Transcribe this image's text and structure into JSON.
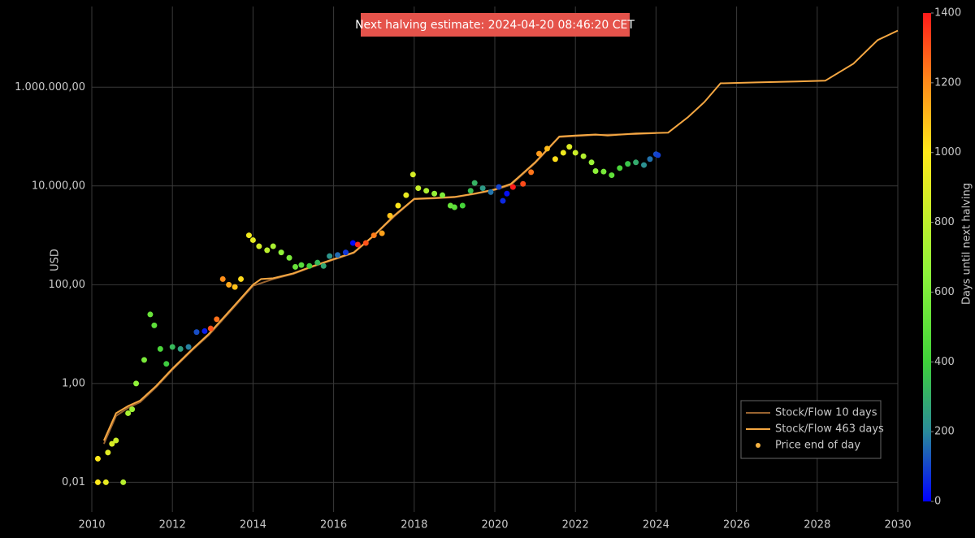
{
  "chart_data": {
    "type": "scatter",
    "annotation": "Next halving estimate: 2024-04-20 08:46:20 CET",
    "y_title": "USD",
    "y_scale": "log",
    "grid": true,
    "legend": "bottom right",
    "xlim": [
      2010,
      2030
    ],
    "xticks": [
      2010,
      2012,
      2014,
      2016,
      2018,
      2020,
      2022,
      2024,
      2026,
      2028,
      2030
    ],
    "ylim": [
      0.0025,
      43000000
    ],
    "yticks": [
      {
        "value": 0.01,
        "label": "0,01"
      },
      {
        "value": 1,
        "label": "1,00"
      },
      {
        "value": 100,
        "label": "100,00"
      },
      {
        "value": 10000,
        "label": "10.000,00"
      },
      {
        "value": 1000000,
        "label": "1.000.000,00"
      }
    ],
    "colorbar": {
      "title": "Days until next halving",
      "lim": [
        0,
        1400
      ],
      "ticks": [
        0,
        200,
        400,
        600,
        800,
        1000,
        1200,
        1400
      ],
      "colorscale": [
        [
          0,
          "#0000ff"
        ],
        [
          200,
          "#2a8a9a"
        ],
        [
          400,
          "#3fd13a"
        ],
        [
          650,
          "#8cf23a"
        ],
        [
          1000,
          "#ffe81a"
        ],
        [
          1200,
          "#ff8c1a"
        ],
        [
          1400,
          "#ff1a1a"
        ]
      ]
    },
    "series": [
      {
        "name": "Stock/Flow 10 days",
        "mode": "lines",
        "color": "#9a6430",
        "x": [
          2010.3,
          2010.6,
          2010.9,
          2011.2,
          2011.6,
          2012.0,
          2012.5,
          2012.9,
          2013.5,
          2014.0,
          2014.5,
          2015.0,
          2015.5,
          2016.0,
          2016.5,
          2017.0,
          2017.5,
          2018.0,
          2018.5,
          2019.0,
          2019.5,
          2020.0,
          2020.4,
          2021.0,
          2021.6,
          2022.5,
          2023.5,
          2024.0
        ],
        "values": [
          0.06,
          0.22,
          0.32,
          0.42,
          0.85,
          1.9,
          4.8,
          9.5,
          33,
          95,
          130,
          165,
          235,
          320,
          440,
          980,
          2400,
          5400,
          5600,
          5900,
          6900,
          8300,
          10500,
          29000,
          98000,
          108000,
          112000,
          118000
        ]
      },
      {
        "name": "Stock/Flow 463 days",
        "mode": "lines",
        "color": "#f5a742",
        "x": [
          2010.3,
          2010.6,
          2010.9,
          2011.2,
          2011.6,
          2012.0,
          2012.5,
          2012.9,
          2013.5,
          2014.0,
          2014.2,
          2014.5,
          2015.0,
          2015.5,
          2016.0,
          2016.5,
          2017.0,
          2017.5,
          2018.0,
          2018.5,
          2019.0,
          2019.5,
          2020.0,
          2020.4,
          2021.0,
          2021.6,
          2022.0,
          2022.5,
          2022.8,
          2023.5,
          2024.3,
          2024.8,
          2025.2,
          2025.6,
          2026.5,
          2027.5,
          2028.2,
          2028.9,
          2029.5,
          2030.0
        ],
        "values": [
          0.07,
          0.25,
          0.35,
          0.45,
          0.9,
          2,
          5,
          10,
          35,
          100,
          130,
          135,
          170,
          240,
          330,
          450,
          1000,
          2500,
          5500,
          5700,
          6000,
          7000,
          8500,
          11000,
          30000,
          100000,
          105000,
          110000,
          105000,
          115000,
          120000,
          250000,
          500000,
          1200000,
          1250000,
          1300000,
          1350000,
          3000000,
          9000000,
          14000000
        ]
      },
      {
        "name": "Price end of day",
        "mode": "markers",
        "color": "#f5b342",
        "x": [
          2010.15,
          2010.15,
          2010.35,
          2010.4,
          2010.5,
          2010.6,
          2010.78,
          2010.9,
          2011.0,
          2011.1,
          2011.3,
          2011.45,
          2011.55,
          2011.7,
          2011.85,
          2012.0,
          2012.2,
          2012.4,
          2012.6,
          2012.8,
          2012.95,
          2013.1,
          2013.25,
          2013.4,
          2013.55,
          2013.7,
          2013.9,
          2014.0,
          2014.15,
          2014.35,
          2014.5,
          2014.7,
          2014.9,
          2015.05,
          2015.2,
          2015.4,
          2015.6,
          2015.75,
          2015.9,
          2016.1,
          2016.3,
          2016.48,
          2016.6,
          2016.8,
          2017.0,
          2017.2,
          2017.4,
          2017.6,
          2017.8,
          2017.97,
          2018.1,
          2018.3,
          2018.5,
          2018.7,
          2018.9,
          2019.0,
          2019.2,
          2019.4,
          2019.5,
          2019.7,
          2019.9,
          2020.1,
          2020.2,
          2020.3,
          2020.45,
          2020.7,
          2020.9,
          2021.1,
          2021.3,
          2021.5,
          2021.7,
          2021.85,
          2022.0,
          2022.2,
          2022.4,
          2022.5,
          2022.7,
          2022.9,
          2023.1,
          2023.3,
          2023.5,
          2023.7,
          2023.85,
          2024.0,
          2024.05
        ],
        "values": [
          0.01,
          0.03,
          0.01,
          0.04,
          0.06,
          0.07,
          0.01,
          0.25,
          0.3,
          1,
          3,
          25,
          15,
          5,
          2.5,
          5.5,
          5,
          5.5,
          11,
          11.5,
          13,
          20,
          130,
          100,
          90,
          130,
          1000,
          800,
          600,
          500,
          600,
          450,
          350,
          230,
          250,
          240,
          280,
          240,
          380,
          400,
          450,
          700,
          650,
          700,
          1000,
          1100,
          2500,
          4000,
          6500,
          17000,
          9000,
          8000,
          7000,
          6500,
          4000,
          3700,
          4000,
          8000,
          11500,
          9000,
          7500,
          9500,
          5000,
          7000,
          9500,
          11000,
          19000,
          45000,
          57000,
          35000,
          47000,
          62000,
          47000,
          40000,
          30000,
          20000,
          19500,
          16500,
          23000,
          28000,
          30000,
          26500,
          35000,
          44000,
          42000
        ],
        "color_values": [
          1000,
          1000,
          925,
          907,
          880,
          843,
          778,
          733,
          700,
          660,
          590,
          535,
          500,
          440,
          387,
          332,
          259,
          186,
          113,
          40,
          1303,
          1248,
          1194,
          1139,
          1084,
          1029,
          956,
          920,
          865,
          792,
          738,
          664,
          591,
          537,
          482,
          409,
          336,
          281,
          230,
          154,
          80,
          15,
          1372,
          1300,
          1227,
          1154,
          1081,
          1007,
          934,
          872,
          825,
          752,
          679,
          606,
          533,
          496,
          423,
          350,
          314,
          241,
          168,
          95,
          58,
          22,
          1400,
          1314,
          1241,
          1168,
          1095,
          1022,
          949,
          894,
          840,
          767,
          694,
          657,
          584,
          511,
          438,
          365,
          292,
          219,
          164,
          110,
          91
        ]
      }
    ]
  }
}
